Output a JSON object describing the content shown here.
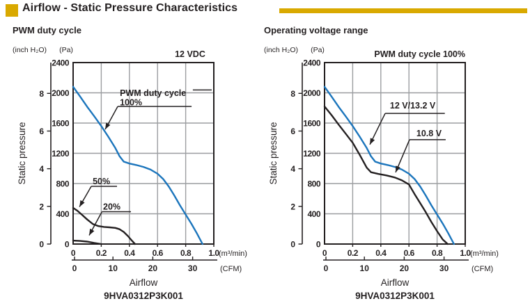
{
  "header": {
    "title": "Airflow - Static Pressure Characteristics",
    "accent_color": "#D9A900"
  },
  "colors": {
    "text": "#231F20",
    "grid": "#9B9DA0",
    "blue": "#1B75BC",
    "dark": "#231F20"
  },
  "chart_data": [
    {
      "type": "line",
      "subtitle": "PWM duty cycle",
      "corner_label": "12 VDC",
      "corner_end_f": 0.94,
      "y_axis_title": "Static pressure",
      "x_axis_title": "Airflow",
      "model": "9HVA0312P3K001",
      "x_unit": "(m³/min)",
      "x2_unit": "(CFM)",
      "y_unit_left": "(inch H₂O)",
      "y_unit_right": "(Pa)",
      "xlim": [
        0,
        1.0
      ],
      "ylim_pa": [
        0,
        2400
      ],
      "x_ticks": [
        "0",
        "0.2",
        "0.4",
        "0.6",
        "0.8",
        "1.0"
      ],
      "y_ticks_pa": [
        0,
        400,
        800,
        1200,
        1600,
        2000,
        2400
      ],
      "y_ticks_inch": [
        0,
        2,
        4,
        6,
        8
      ],
      "x2_ticks_cfm": [
        0,
        10,
        20,
        30
      ],
      "pa_per_inch_h2o": 249.089,
      "cfm_per_m3min": 35.315,
      "grid": true,
      "series": [
        {
          "name": "PWM duty cycle 100%",
          "color_key": "blue",
          "points": [
            [
              0,
              2080
            ],
            [
              0.05,
              1950
            ],
            [
              0.1,
              1815
            ],
            [
              0.15,
              1690
            ],
            [
              0.2,
              1560
            ],
            [
              0.25,
              1420
            ],
            [
              0.3,
              1270
            ],
            [
              0.33,
              1160
            ],
            [
              0.36,
              1090
            ],
            [
              0.4,
              1065
            ],
            [
              0.45,
              1045
            ],
            [
              0.5,
              1020
            ],
            [
              0.55,
              985
            ],
            [
              0.6,
              930
            ],
            [
              0.64,
              860
            ],
            [
              0.68,
              760
            ],
            [
              0.72,
              640
            ],
            [
              0.76,
              510
            ],
            [
              0.8,
              390
            ],
            [
              0.84,
              270
            ],
            [
              0.88,
              140
            ],
            [
              0.92,
              0
            ]
          ]
        },
        {
          "name": "50%",
          "color_key": "dark",
          "points": [
            [
              0,
              478
            ],
            [
              0.03,
              440
            ],
            [
              0.06,
              392
            ],
            [
              0.1,
              325
            ],
            [
              0.14,
              265
            ],
            [
              0.18,
              237
            ],
            [
              0.22,
              226
            ],
            [
              0.26,
              221
            ],
            [
              0.3,
              213
            ],
            [
              0.33,
              196
            ],
            [
              0.36,
              160
            ],
            [
              0.39,
              105
            ],
            [
              0.42,
              40
            ],
            [
              0.44,
              0
            ]
          ]
        },
        {
          "name": "20%",
          "color_key": "dark",
          "points": [
            [
              0,
              45
            ],
            [
              0.05,
              40
            ],
            [
              0.1,
              32
            ],
            [
              0.15,
              15
            ],
            [
              0.2,
              0
            ]
          ]
        }
      ],
      "callouts": [
        {
          "lines": [
            "PWM duty cycle",
            "100%"
          ],
          "tx": 0.332,
          "ty": 0.142,
          "ul_y": 0.242,
          "ul_x1": 0.317,
          "ul_x2": 0.842,
          "ext": {
            "y": 0.151,
            "x1": 0.851,
            "x2": 0.985
          },
          "target": [
            0.228,
            0.368
          ]
        },
        {
          "lines": [
            "50%"
          ],
          "tx": 0.139,
          "ty": 0.628,
          "ul_y": 0.682,
          "ul_x1": 0.129,
          "ul_x2": 0.312,
          "target": [
            0.045,
            0.795
          ]
        },
        {
          "lines": [
            "20%"
          ],
          "tx": 0.213,
          "ty": 0.768,
          "ul_y": 0.822,
          "ul_x1": 0.205,
          "ul_x2": 0.411,
          "target": [
            0.114,
            0.952
          ]
        }
      ]
    },
    {
      "type": "line",
      "subtitle": "Operating voltage range",
      "corner_label": "PWM duty cycle 100%",
      "corner_end_f": 1.0,
      "y_axis_title": "Static pressure",
      "x_axis_title": "Airflow",
      "model": "9HVA0312P3K001",
      "x_unit": "(m³/min)",
      "x2_unit": "(CFM)",
      "y_unit_left": "(inch H₂O)",
      "y_unit_right": "(Pa)",
      "xlim": [
        0,
        1.0
      ],
      "ylim_pa": [
        0,
        2400
      ],
      "x_ticks": [
        "0",
        "0.2",
        "0.4",
        "0.6",
        "0.8",
        "1.0"
      ],
      "y_ticks_pa": [
        0,
        400,
        800,
        1200,
        1600,
        2000,
        2400
      ],
      "y_ticks_inch": [
        0,
        2,
        4,
        6,
        8
      ],
      "x2_ticks_cfm": [
        0,
        10,
        20,
        30
      ],
      "pa_per_inch_h2o": 249.089,
      "cfm_per_m3min": 35.315,
      "grid": true,
      "series": [
        {
          "name": "12 V/13.2 V",
          "color_key": "blue",
          "points": [
            [
              0,
              2080
            ],
            [
              0.05,
              1950
            ],
            [
              0.1,
              1815
            ],
            [
              0.15,
              1690
            ],
            [
              0.2,
              1560
            ],
            [
              0.25,
              1420
            ],
            [
              0.3,
              1270
            ],
            [
              0.33,
              1160
            ],
            [
              0.36,
              1090
            ],
            [
              0.4,
              1065
            ],
            [
              0.45,
              1045
            ],
            [
              0.5,
              1020
            ],
            [
              0.55,
              985
            ],
            [
              0.6,
              930
            ],
            [
              0.64,
              860
            ],
            [
              0.68,
              760
            ],
            [
              0.72,
              640
            ],
            [
              0.76,
              510
            ],
            [
              0.8,
              390
            ],
            [
              0.84,
              270
            ],
            [
              0.88,
              140
            ],
            [
              0.92,
              0
            ]
          ]
        },
        {
          "name": "10.8 V",
          "color_key": "dark",
          "points": [
            [
              0,
              1820
            ],
            [
              0.05,
              1705
            ],
            [
              0.1,
              1580
            ],
            [
              0.15,
              1460
            ],
            [
              0.2,
              1340
            ],
            [
              0.25,
              1180
            ],
            [
              0.3,
              1010
            ],
            [
              0.33,
              950
            ],
            [
              0.38,
              928
            ],
            [
              0.44,
              908
            ],
            [
              0.5,
              880
            ],
            [
              0.55,
              842
            ],
            [
              0.6,
              788
            ],
            [
              0.64,
              660
            ],
            [
              0.68,
              540
            ],
            [
              0.72,
              420
            ],
            [
              0.76,
              290
            ],
            [
              0.8,
              170
            ],
            [
              0.84,
              60
            ],
            [
              0.875,
              0
            ]
          ]
        }
      ],
      "callouts": [
        {
          "lines": [
            "12 V/13.2 V"
          ],
          "tx": 0.465,
          "ty": 0.211,
          "ul_y": 0.28,
          "ul_x1": 0.431,
          "ul_x2": 0.855,
          "target": [
            0.322,
            0.452
          ]
        },
        {
          "lines": [
            "10.8 V"
          ],
          "tx": 0.653,
          "ty": 0.364,
          "ul_y": 0.425,
          "ul_x1": 0.604,
          "ul_x2": 0.861,
          "target": [
            0.505,
            0.605
          ]
        }
      ]
    }
  ]
}
